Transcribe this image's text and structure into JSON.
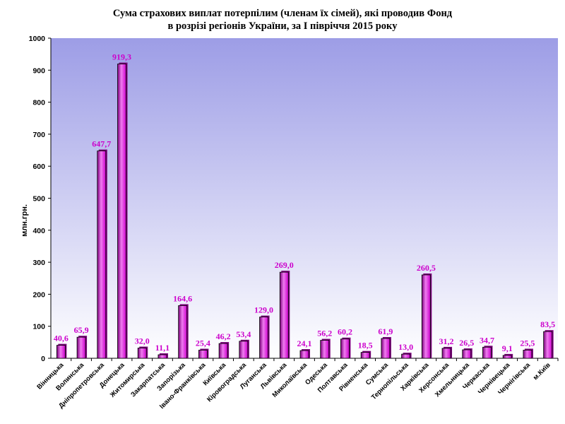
{
  "chart_data": {
    "type": "bar",
    "title": "Сума страхових виплат потерпілим (членам їх сімей), які  проводив Фонд",
    "subtitle": "в розрізі регіонів України, за І півріччя 2015 року",
    "xlabel": "",
    "ylabel": "млн.грн.",
    "ylim": [
      0,
      1000
    ],
    "yticks": [
      "0",
      "100",
      "200",
      "300",
      "400",
      "500",
      "600",
      "700",
      "800",
      "900",
      "1000"
    ],
    "grid": false,
    "categories": [
      "Вінницька",
      "Волинська",
      "Дніпропетровська",
      "Донецька",
      "Житомирська",
      "Закарпатська",
      "Запорізька",
      "Івано-Франківська",
      "Київська",
      "Кіровоградська",
      "Луганська",
      "Львівська",
      "Миколаївська",
      "Одеська",
      "Полтавська",
      "Рівненська",
      "Сумська",
      "Тернопільська",
      "Харківська",
      "Херсонська",
      "Хмельницька",
      "Черкаська",
      "Чернівецька",
      "Чернігівська",
      "м.Київ"
    ],
    "values": [
      40.6,
      65.9,
      647.7,
      919.3,
      32.0,
      11.1,
      164.6,
      25.4,
      46.2,
      53.4,
      129.0,
      269.0,
      24.1,
      56.2,
      60.2,
      18.5,
      61.9,
      13.0,
      260.5,
      31.2,
      26.5,
      34.7,
      9.1,
      25.5,
      83.5
    ],
    "data_labels": [
      "40,6",
      "65,9",
      "647,7",
      "919,3",
      "32,0",
      "11,1",
      "164,6",
      "25,4",
      "46,2",
      "53,4",
      "129,0",
      "269,0",
      "24,1",
      "56,2",
      "60,2",
      "18,5",
      "61,9",
      "13,0",
      "260,5",
      "31,2",
      "26,5",
      "34,7",
      "9,1",
      "25,5",
      "83,5"
    ],
    "colors": {
      "bar": "#cc00cc",
      "bar_dark": "#7a007a",
      "bar_light": "#f07cf0",
      "label": "#cc00cc",
      "plot_bg_top": "#9d9de6",
      "plot_bg_bottom": "#ffffff"
    }
  }
}
